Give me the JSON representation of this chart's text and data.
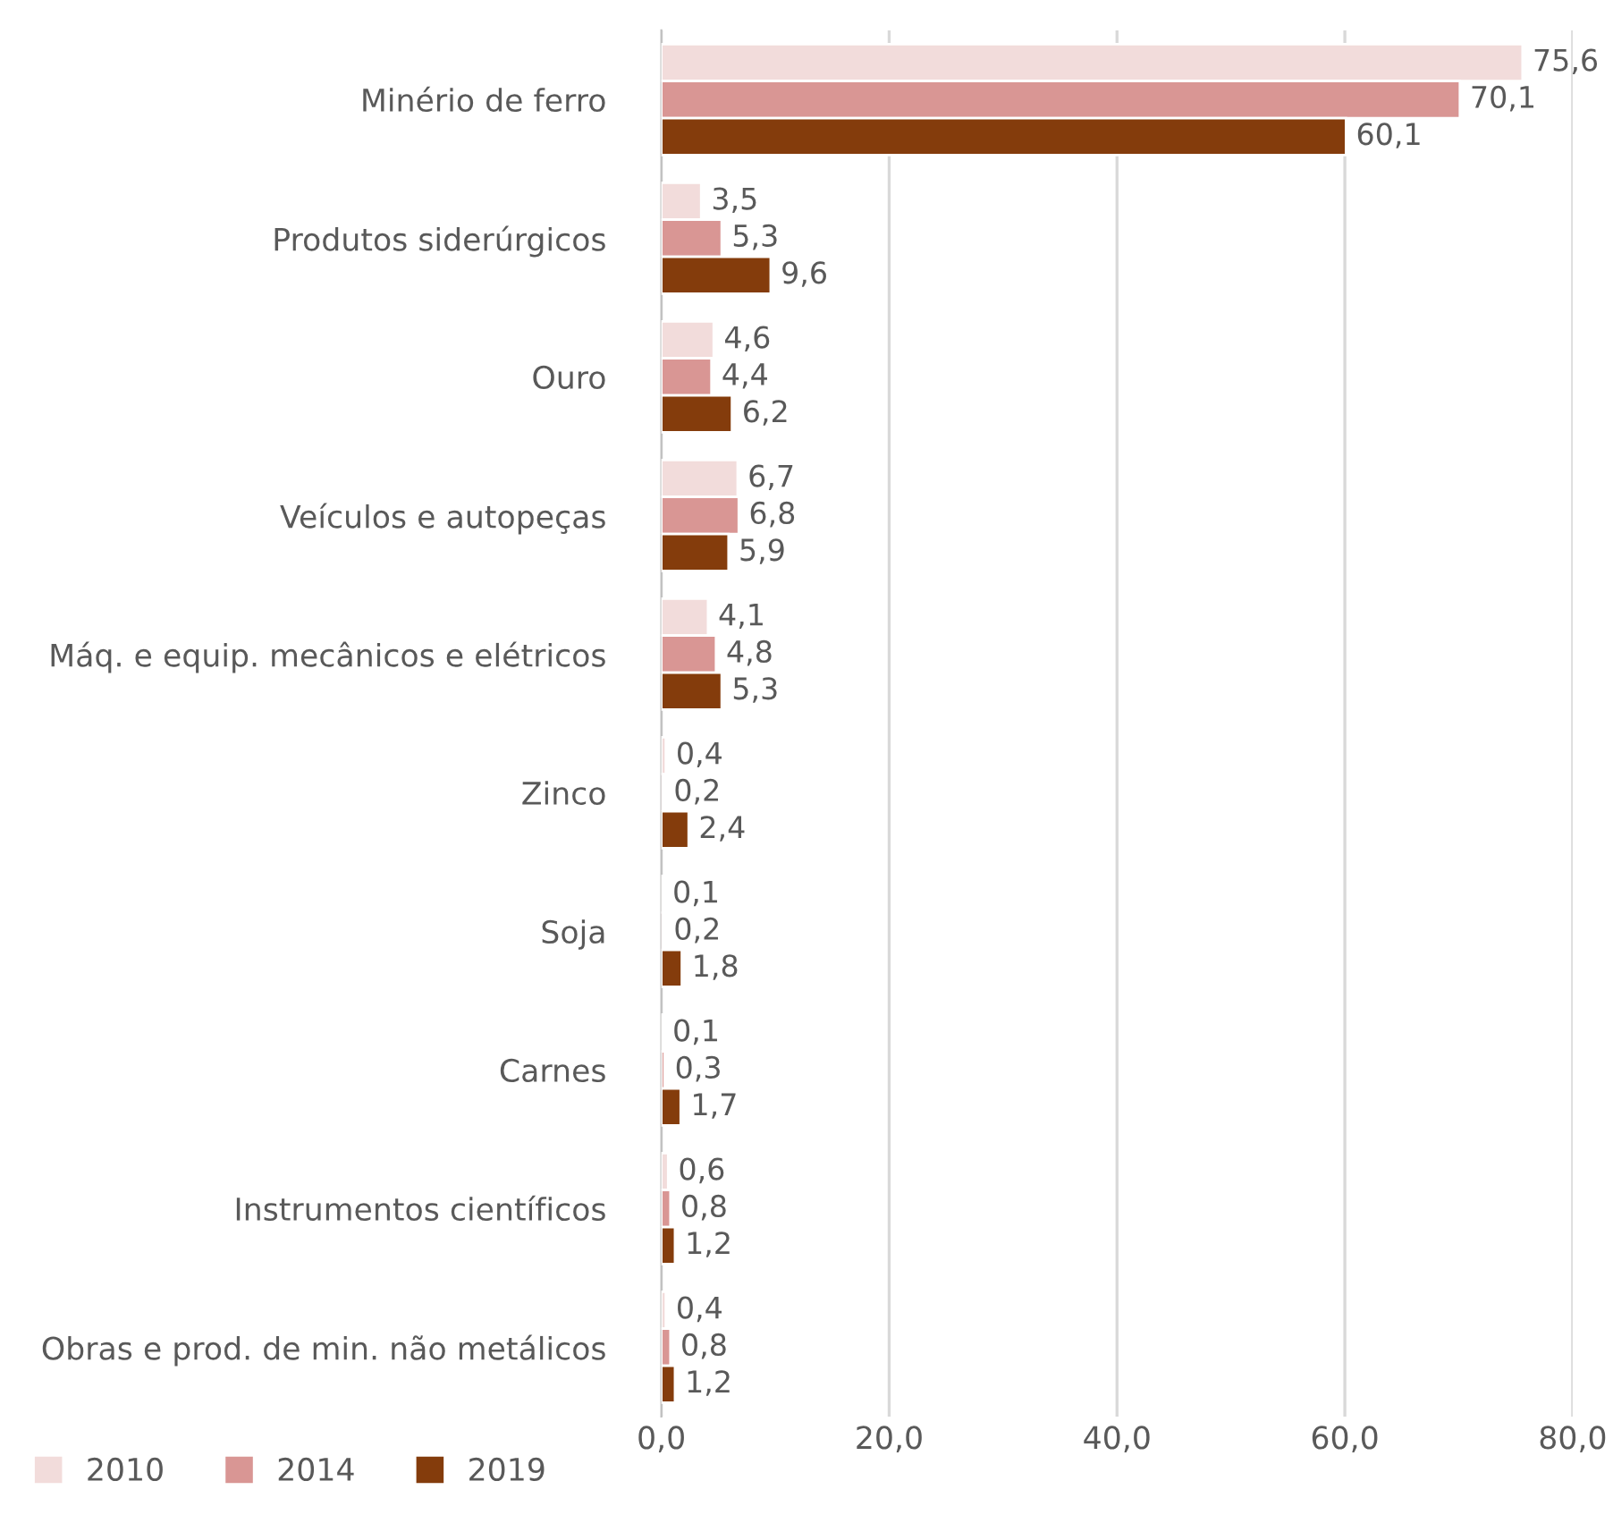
{
  "chart_data": {
    "type": "bar",
    "orientation": "horizontal",
    "categories": [
      "Minério de ferro",
      "Produtos siderúrgicos",
      "Ouro",
      "Veículos e autopeças",
      "Máq. e equip. mecânicos e elétricos",
      "Zinco",
      "Soja",
      "Carnes",
      "Instrumentos científicos",
      "Obras e prod. de min. não metálicos"
    ],
    "series": [
      {
        "name": "2010",
        "color": "#f2dcdb",
        "values": [
          75.6,
          3.5,
          4.6,
          6.7,
          4.1,
          0.4,
          0.1,
          0.1,
          0.6,
          0.4
        ],
        "value_labels": [
          "75,6",
          "3,5",
          "4,6",
          "6,7",
          "4,1",
          "0,4",
          "0,1",
          "0,1",
          "0,6",
          "0,4"
        ]
      },
      {
        "name": "2014",
        "color": "#d99694",
        "values": [
          70.1,
          5.3,
          4.4,
          6.8,
          4.8,
          0.2,
          0.2,
          0.3,
          0.8,
          0.8
        ],
        "value_labels": [
          "70,1",
          "5,3",
          "4,4",
          "6,8",
          "4,8",
          "0,2",
          "0,2",
          "0,3",
          "0,8",
          "0,8"
        ]
      },
      {
        "name": "2019",
        "color": "#843c0c",
        "values": [
          60.1,
          9.6,
          6.2,
          5.9,
          5.3,
          2.4,
          1.8,
          1.7,
          1.2,
          1.2
        ],
        "value_labels": [
          "60,1",
          "9,6",
          "6,2",
          "5,9",
          "5,3",
          "2,4",
          "1,8",
          "1,7",
          "1,2",
          "1,2"
        ]
      }
    ],
    "xlim": [
      0,
      80
    ],
    "xticks": [
      {
        "value": 0,
        "label": "0,0"
      },
      {
        "value": 20,
        "label": "20,0"
      },
      {
        "value": 40,
        "label": "40,0"
      },
      {
        "value": 60,
        "label": "60,0"
      },
      {
        "value": 80,
        "label": "80,0"
      }
    ],
    "grid": "x",
    "legend": "bottom left"
  }
}
